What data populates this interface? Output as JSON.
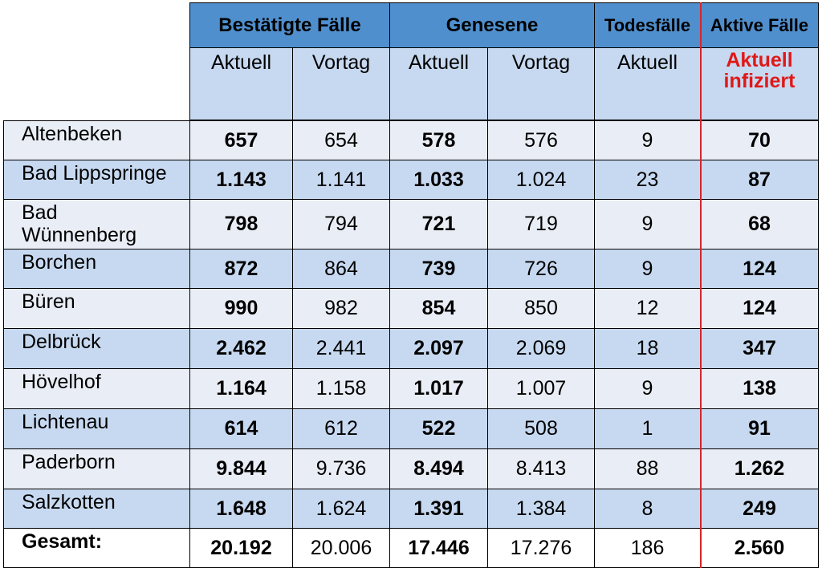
{
  "table": {
    "header_groups": [
      "Bestätigte Fälle",
      "Genesene",
      "Todesfälle",
      "Aktive Fälle"
    ],
    "sub_headers": [
      "Aktuell",
      "Vortag",
      "Aktuell",
      "Vortag",
      "Aktuell",
      "Aktuell infiziert"
    ]
  },
  "chart_data": {
    "type": "table",
    "columns": [
      "Bestätigte Fälle Aktuell",
      "Bestätigte Fälle Vortag",
      "Genesene Aktuell",
      "Genesene Vortag",
      "Todesfälle Aktuell",
      "Aktive Fälle Aktuell infiziert"
    ],
    "rows": [
      {
        "name": "Altenbeken",
        "values": [
          "657",
          "654",
          "578",
          "576",
          "9",
          "70"
        ]
      },
      {
        "name": "Bad Lippspringe",
        "values": [
          "1.143",
          "1.141",
          "1.033",
          "1.024",
          "23",
          "87"
        ]
      },
      {
        "name": "Bad Wünnenberg",
        "values": [
          "798",
          "794",
          "721",
          "719",
          "9",
          "68"
        ]
      },
      {
        "name": "Borchen",
        "values": [
          "872",
          "864",
          "739",
          "726",
          "9",
          "124"
        ]
      },
      {
        "name": "Büren",
        "values": [
          "990",
          "982",
          "854",
          "850",
          "12",
          "124"
        ]
      },
      {
        "name": "Delbrück",
        "values": [
          "2.462",
          "2.441",
          "2.097",
          "2.069",
          "18",
          "347"
        ]
      },
      {
        "name": "Hövelhof",
        "values": [
          "1.164",
          "1.158",
          "1.017",
          "1.007",
          "9",
          "138"
        ]
      },
      {
        "name": "Lichtenau",
        "values": [
          "614",
          "612",
          "522",
          "508",
          "1",
          "91"
        ]
      },
      {
        "name": "Paderborn",
        "values": [
          "9.844",
          "9.736",
          "8.494",
          "8.413",
          "88",
          "1.262"
        ]
      },
      {
        "name": "Salzkotten",
        "values": [
          "1.648",
          "1.624",
          "1.391",
          "1.384",
          "8",
          "249"
        ]
      }
    ],
    "total": {
      "name": "Gesamt:",
      "values": [
        "20.192",
        "20.006",
        "17.446",
        "17.276",
        "186",
        "2.560"
      ]
    },
    "colors": {
      "group_header": "#4f8fce",
      "sub_header": "#c7d9f0",
      "row_light": "#e9edf5",
      "row_dark": "#c7d9f0",
      "highlight": "#e01818"
    }
  }
}
